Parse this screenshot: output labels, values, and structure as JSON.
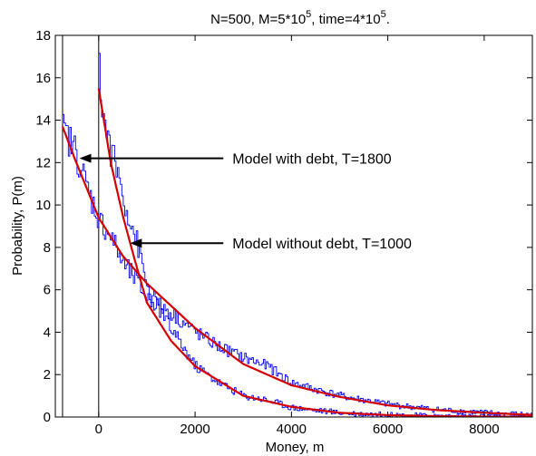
{
  "chart_data": {
    "type": "line",
    "title": {
      "parts": [
        "N=500, M=5*10",
        "5",
        ", time=4*10",
        "5",
        "."
      ]
    },
    "xlabel": "Money, m",
    "ylabel": "Probability, P(m)",
    "xlim": [
      -900,
      9000
    ],
    "ylim": [
      0,
      18
    ],
    "xticks": [
      0,
      2000,
      4000,
      6000,
      8000
    ],
    "xtick_labels": [
      "0",
      "2000",
      "4000",
      "6000",
      "8000"
    ],
    "yticks": [
      0,
      2,
      4,
      6,
      8,
      10,
      12,
      14,
      16,
      18
    ],
    "ytick_labels": [
      "0",
      "2",
      "4",
      "6",
      "8",
      "10",
      "12",
      "14",
      "16",
      "18"
    ],
    "grid": false,
    "vertical_lines": [
      -750,
      0
    ],
    "series": [
      {
        "color": "#d40000",
        "style": "fit-curve",
        "x": [
          -750,
          -500,
          0,
          500,
          1000,
          2000,
          3000,
          4000,
          5000,
          6000,
          7000,
          8000,
          9000
        ],
        "y": [
          13.7,
          12.2,
          9.4,
          7.6,
          6.3,
          4.2,
          2.5,
          1.5,
          0.95,
          0.55,
          0.33,
          0.2,
          0.1
        ]
      },
      {
        "color": "#d40000",
        "style": "fit-curve",
        "x": [
          0,
          250,
          500,
          750,
          1000,
          1500,
          2000,
          3000,
          4000,
          5000,
          6000,
          7000,
          8000,
          9000
        ],
        "y": [
          15.5,
          12.0,
          9.5,
          7.4,
          5.4,
          3.6,
          2.4,
          1.0,
          0.48,
          0.2,
          0.09,
          0.04,
          0.02,
          0.01
        ]
      },
      {
        "color": "#0000ff",
        "style": "histogram",
        "x": [
          -750,
          -500,
          -250,
          0,
          250,
          500,
          750,
          1000,
          1500,
          2000,
          2500,
          3000,
          3500,
          4000,
          4500,
          5000,
          6000,
          7000,
          8000,
          9000
        ],
        "y": [
          13.5,
          12.6,
          10.8,
          9.3,
          8.5,
          7.2,
          6.5,
          5.6,
          4.9,
          4.0,
          3.3,
          2.8,
          2.4,
          1.6,
          1.3,
          1.0,
          0.6,
          0.35,
          0.2,
          0.1
        ]
      },
      {
        "color": "#0000ff",
        "style": "histogram",
        "x": [
          0,
          100,
          200,
          300,
          400,
          500,
          600,
          700,
          800,
          900,
          1000,
          1200,
          1500,
          2000,
          2500,
          3000,
          3500,
          4000,
          5000,
          6000,
          7000,
          8000,
          9000
        ],
        "y": [
          16.2,
          14.0,
          13.0,
          12.1,
          11.4,
          10.4,
          9.6,
          8.9,
          8.1,
          7.1,
          6.1,
          5.3,
          4.1,
          2.4,
          1.6,
          1.0,
          0.8,
          0.45,
          0.2,
          0.1,
          0.05,
          0.03,
          0.02
        ]
      }
    ],
    "annotations": [
      {
        "text": "Model with debt, T=1800",
        "arrow_to": [
          -400,
          12.2
        ],
        "text_at": [
          2700,
          12.2
        ]
      },
      {
        "text": "Model without debt, T=1000",
        "arrow_to": [
          650,
          8.2
        ],
        "text_at": [
          2700,
          8.2
        ]
      }
    ]
  }
}
